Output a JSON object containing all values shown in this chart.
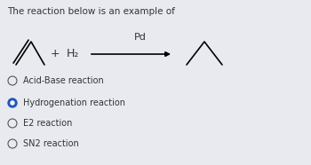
{
  "title": "The reaction below is an example of",
  "bg_color": "#e8eaf0",
  "options": [
    {
      "label": "Acid-Base reaction",
      "selected": false
    },
    {
      "label": "Hydrogenation reaction",
      "selected": true
    },
    {
      "label": "E2 reaction",
      "selected": false
    },
    {
      "label": "SN2 reaction",
      "selected": false
    }
  ],
  "catalyst": "Pd",
  "reagent": "H₂",
  "title_fontsize": 7.5,
  "option_fontsize": 7.0,
  "text_color": "#333333",
  "selected_color": "#2255bb",
  "circle_color": "#555555"
}
